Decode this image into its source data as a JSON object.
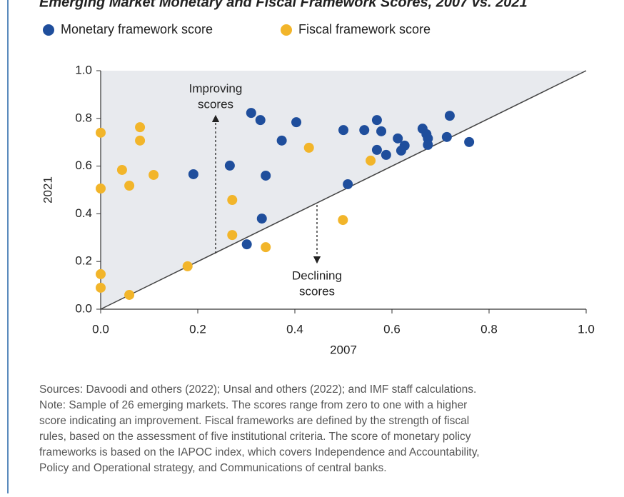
{
  "chart_data": {
    "type": "scatter",
    "title": "Emerging Market Monetary and Fiscal Framework Scores, 2007 vs. 2021",
    "xlabel": "2007",
    "ylabel": "2021",
    "xlim": [
      0,
      1
    ],
    "ylim": [
      0,
      1
    ],
    "xticks": [
      {
        "value": 0,
        "label": "0.0"
      },
      {
        "value": 0.2,
        "label": "0.2"
      },
      {
        "value": 0.4,
        "label": "0.4"
      },
      {
        "value": 0.6,
        "label": "0.6"
      },
      {
        "value": 0.8,
        "label": "0.8"
      },
      {
        "value": 1,
        "label": "1.0"
      }
    ],
    "yticks": [
      {
        "value": 0,
        "label": "0.0"
      },
      {
        "value": 0.2,
        "label": "0.2"
      },
      {
        "value": 0.4,
        "label": "0.4"
      },
      {
        "value": 0.6,
        "label": "0.6"
      },
      {
        "value": 0.8,
        "label": "0.8"
      },
      {
        "value": 1,
        "label": "1.0"
      }
    ],
    "annotations": [
      [
        "Improving",
        "scores"
      ],
      [
        "Declining",
        "scores"
      ]
    ],
    "notes": [
      "Sources: Davoodi and others (2022); Unsal and others (2022); and IMF staff calculations.",
      "Note: Sample of 26 emerging markets. The scores range from zero to one with a higher",
      "score indicating an improvement. Fiscal frameworks are defined by the strength of fiscal",
      "rules, based on the assessment of five institutional criteria. The score of monetary policy",
      "frameworks is based on the IAPOC index, which covers Independence and Accountability,",
      "Policy and Operational strategy, and Communications of central banks."
    ],
    "series": [
      {
        "name": "Monetary framework score",
        "color": "#1f4e9c",
        "x": [
          0.191,
          0.31,
          0.329,
          0.266,
          0.34,
          0.332,
          0.301,
          0.373,
          0.403,
          0.5,
          0.509,
          0.543,
          0.569,
          0.578,
          0.569,
          0.588,
          0.612,
          0.619,
          0.626,
          0.663,
          0.671,
          0.674,
          0.674,
          0.713,
          0.719,
          0.759
        ],
        "values": [
          0.566,
          0.823,
          0.793,
          0.602,
          0.56,
          0.38,
          0.272,
          0.707,
          0.784,
          0.751,
          0.524,
          0.751,
          0.793,
          0.746,
          0.668,
          0.647,
          0.716,
          0.665,
          0.686,
          0.757,
          0.734,
          0.716,
          0.689,
          0.722,
          0.811,
          0.701
        ]
      },
      {
        "name": "Fiscal framework score",
        "color": "#f2b52a",
        "x": [
          0.0,
          0.0,
          0.0,
          0.0,
          0.044,
          0.081,
          0.081,
          0.059,
          0.109,
          0.059,
          0.179,
          0.271,
          0.271,
          0.34,
          0.429,
          0.499,
          0.556
        ],
        "values": [
          0.74,
          0.506,
          0.147,
          0.09,
          0.584,
          0.763,
          0.707,
          0.518,
          0.563,
          0.06,
          0.18,
          0.458,
          0.311,
          0.26,
          0.677,
          0.374,
          0.623
        ]
      }
    ]
  }
}
